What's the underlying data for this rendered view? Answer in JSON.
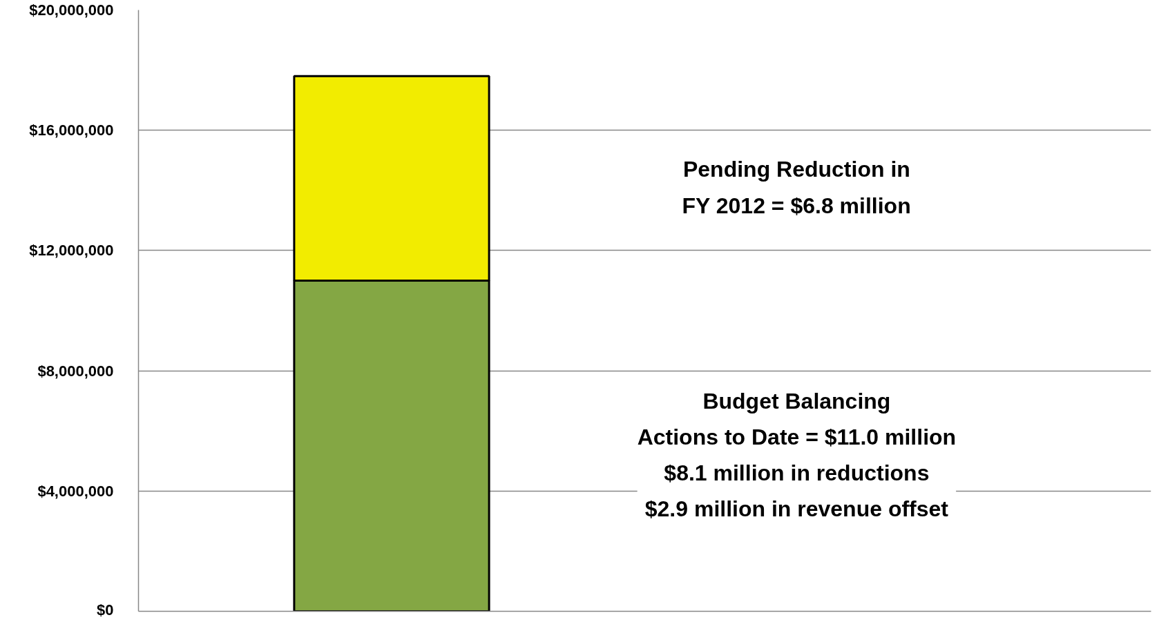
{
  "chart_data": {
    "type": "bar",
    "stacked": true,
    "categories": [
      null
    ],
    "series": [
      {
        "color": "#84a744",
        "values": [
          11000000
        ]
      },
      {
        "color": "#f2ec00",
        "values": [
          6800000
        ]
      }
    ],
    "ylim": [
      0,
      20000000
    ],
    "yticks": [
      {
        "value": 0,
        "label": "$0"
      },
      {
        "value": 4000000,
        "label": "$4,000,000"
      },
      {
        "value": 8000000,
        "label": "$8,000,000"
      },
      {
        "value": 12000000,
        "label": "$12,000,000"
      },
      {
        "value": 16000000,
        "label": "$16,000,000"
      },
      {
        "value": 20000000,
        "label": "$20,000,000"
      }
    ],
    "grid": "y",
    "tick_labels": "y",
    "annotations": [
      "Pending Reduction in\nFY 2012 = $6.8 million",
      "Budget Balancing\nActions to Date = $11.0 million\n$8.1 million in reductions\n$2.9 million in revenue offset"
    ]
  }
}
